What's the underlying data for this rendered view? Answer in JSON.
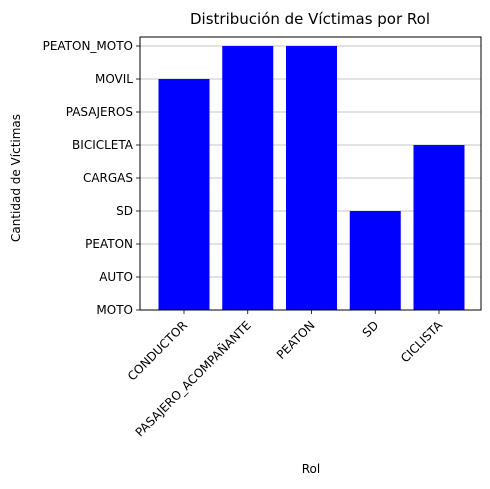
{
  "chart_data": {
    "type": "bar",
    "title": "Distribución de Víctimas por Rol",
    "xlabel": "Rol",
    "ylabel": "Cantidad de Víctimas",
    "categories": [
      "CONDUCTOR",
      "PASAJERO_ACOMPAÑANTE",
      "PEATON",
      "SD",
      "CICLISTA"
    ],
    "values": [
      "MOVIL",
      "PEATON_MOTO",
      "PEATON_MOTO",
      "SD",
      "BICICLETA"
    ],
    "y_categories": [
      "MOTO",
      "AUTO",
      "PEATON",
      "SD",
      "CARGAS",
      "BICICLETA",
      "PASAJEROS",
      "MOVIL",
      "PEATON_MOTO"
    ],
    "y_axis_type": "categorical",
    "bar_color": "#0000ff",
    "grid": "horizontal",
    "legend": "none"
  }
}
